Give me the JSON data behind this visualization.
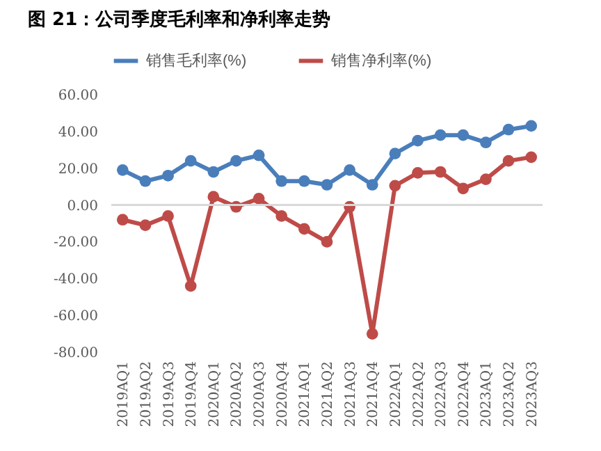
{
  "chart_data": {
    "type": "line",
    "title": "图 21：公司季度毛利率和净利率走势",
    "categories": [
      "2019AQ1",
      "2019AQ2",
      "2019AQ3",
      "2019AQ4",
      "2020AQ1",
      "2020AQ2",
      "2020AQ3",
      "2020AQ4",
      "2021AQ1",
      "2021AQ2",
      "2021AQ3",
      "2021AQ4",
      "2022AQ1",
      "2022AQ2",
      "2022AQ3",
      "2022AQ4",
      "2023AQ1",
      "2023AQ2",
      "2023AQ3"
    ],
    "series": [
      {
        "name": "销售毛利率(%)",
        "color": "#4a7ebb",
        "values": [
          19,
          13,
          16,
          24,
          18,
          24,
          27,
          13,
          13,
          11,
          19,
          11,
          28,
          35,
          38,
          38,
          34,
          41,
          43
        ]
      },
      {
        "name": "销售净利率(%)",
        "color": "#be4b48",
        "values": [
          -8,
          -11,
          -6,
          -44,
          4.5,
          -1,
          3.5,
          -6,
          -13,
          -20,
          -1,
          -70,
          10.5,
          17.5,
          18,
          9,
          14,
          24,
          26
        ]
      }
    ],
    "ylim": [
      -80,
      60
    ],
    "yticks": [
      {
        "value": -80,
        "label": "-80.00"
      },
      {
        "value": -60,
        "label": "-60.00"
      },
      {
        "value": -40,
        "label": "-40.00"
      },
      {
        "value": -20,
        "label": "-20.00"
      },
      {
        "value": 0,
        "label": "0.00"
      },
      {
        "value": 20,
        "label": "20.00"
      },
      {
        "value": 40,
        "label": "40.00"
      },
      {
        "value": 60,
        "label": "60.00"
      }
    ],
    "ref_lines": [
      {
        "axis": "y",
        "value": 0,
        "color": "#d9d9d9"
      }
    ],
    "grid": false,
    "legend": "top",
    "marker": "circle",
    "line_style": "solid"
  }
}
